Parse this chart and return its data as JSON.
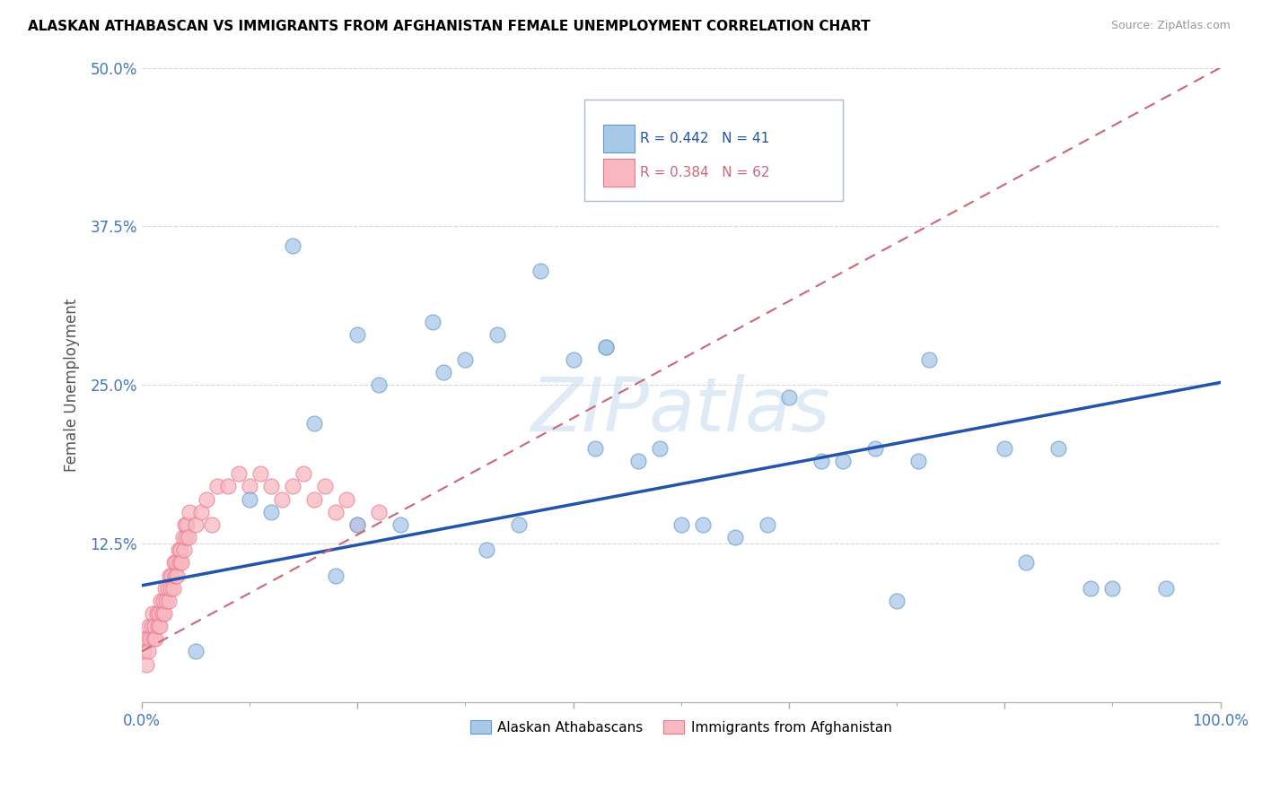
{
  "title": "ALASKAN ATHABASCAN VS IMMIGRANTS FROM AFGHANISTAN FEMALE UNEMPLOYMENT CORRELATION CHART",
  "source": "Source: ZipAtlas.com",
  "ylabel": "Female Unemployment",
  "xlim": [
    0,
    1.0
  ],
  "ylim": [
    0,
    0.5
  ],
  "yticks": [
    0.0,
    0.125,
    0.25,
    0.375,
    0.5
  ],
  "ytick_labels": [
    "",
    "12.5%",
    "25.0%",
    "37.5%",
    "50.0%"
  ],
  "xtick_labels": [
    "0.0%",
    "100.0%"
  ],
  "blue_color": "#a8c8e8",
  "blue_edge_color": "#6699cc",
  "pink_color": "#f9b8c0",
  "pink_edge_color": "#e87890",
  "blue_line_color": "#2255aa",
  "pink_line_color": "#cc6677",
  "watermark": "ZIPatlas",
  "watermark_color": "#c8dff0",
  "blue_R": 0.442,
  "blue_N": 41,
  "pink_R": 0.384,
  "pink_N": 62,
  "blue_line_x0": 0.0,
  "blue_line_y0": 0.092,
  "blue_line_x1": 1.0,
  "blue_line_y1": 0.252,
  "pink_line_x0": 0.0,
  "pink_line_y0": 0.04,
  "pink_line_x1": 1.0,
  "pink_line_y1": 0.5,
  "blue_x": [
    0.05,
    0.14,
    0.16,
    0.2,
    0.24,
    0.27,
    0.3,
    0.33,
    0.37,
    0.4,
    0.43,
    0.43,
    0.46,
    0.5,
    0.55,
    0.57,
    0.6,
    0.63,
    0.65,
    0.68,
    0.7,
    0.73,
    0.8,
    0.85,
    0.9,
    0.95,
    0.1,
    0.12,
    0.18,
    0.22,
    0.28,
    0.35,
    0.42,
    0.52,
    0.58,
    0.72,
    0.82,
    0.88,
    0.2,
    0.32,
    0.48
  ],
  "blue_y": [
    0.04,
    0.36,
    0.22,
    0.29,
    0.14,
    0.3,
    0.27,
    0.29,
    0.34,
    0.27,
    0.28,
    0.28,
    0.19,
    0.14,
    0.13,
    0.41,
    0.24,
    0.19,
    0.19,
    0.2,
    0.08,
    0.27,
    0.2,
    0.2,
    0.09,
    0.09,
    0.16,
    0.15,
    0.1,
    0.25,
    0.26,
    0.14,
    0.2,
    0.14,
    0.14,
    0.19,
    0.11,
    0.09,
    0.14,
    0.12,
    0.2
  ],
  "pink_x": [
    0.002,
    0.003,
    0.004,
    0.005,
    0.006,
    0.007,
    0.008,
    0.009,
    0.01,
    0.011,
    0.012,
    0.013,
    0.014,
    0.015,
    0.016,
    0.017,
    0.018,
    0.019,
    0.02,
    0.021,
    0.022,
    0.023,
    0.024,
    0.025,
    0.026,
    0.027,
    0.028,
    0.029,
    0.03,
    0.031,
    0.032,
    0.033,
    0.034,
    0.035,
    0.036,
    0.037,
    0.038,
    0.039,
    0.04,
    0.041,
    0.042,
    0.043,
    0.044,
    0.05,
    0.055,
    0.06,
    0.065,
    0.07,
    0.08,
    0.09,
    0.1,
    0.11,
    0.12,
    0.13,
    0.14,
    0.15,
    0.16,
    0.17,
    0.18,
    0.19,
    0.2,
    0.22
  ],
  "pink_y": [
    0.04,
    0.05,
    0.03,
    0.05,
    0.04,
    0.06,
    0.05,
    0.06,
    0.07,
    0.05,
    0.06,
    0.05,
    0.07,
    0.06,
    0.07,
    0.06,
    0.08,
    0.07,
    0.08,
    0.07,
    0.09,
    0.08,
    0.09,
    0.08,
    0.1,
    0.09,
    0.1,
    0.09,
    0.11,
    0.1,
    0.11,
    0.1,
    0.12,
    0.11,
    0.12,
    0.11,
    0.13,
    0.12,
    0.14,
    0.13,
    0.14,
    0.13,
    0.15,
    0.14,
    0.15,
    0.16,
    0.14,
    0.17,
    0.17,
    0.18,
    0.17,
    0.18,
    0.17,
    0.16,
    0.17,
    0.18,
    0.16,
    0.17,
    0.15,
    0.16,
    0.14,
    0.15
  ]
}
